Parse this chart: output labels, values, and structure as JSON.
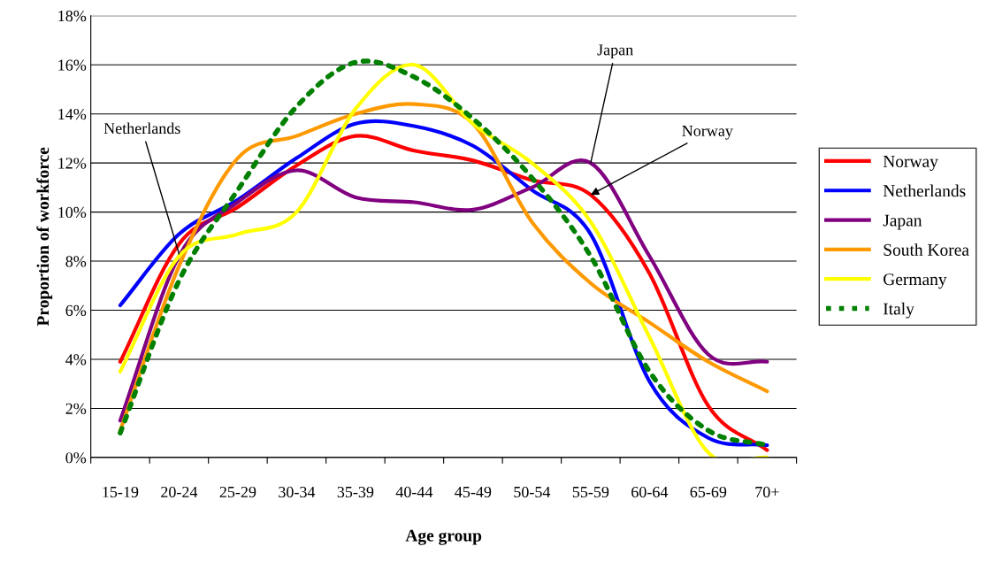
{
  "chart_data": {
    "type": "line",
    "xlabel": "Age group",
    "ylabel": "Proportion of workforce",
    "categories": [
      "15-19",
      "20-24",
      "25-29",
      "30-34",
      "35-39",
      "40-44",
      "45-49",
      "50-54",
      "55-59",
      "60-64",
      "65-69",
      "70+"
    ],
    "series": [
      {
        "name": "Norway",
        "color": "#ff0000",
        "line_style": "solid",
        "values": [
          3.9,
          8.7,
          10.2,
          11.9,
          13.1,
          12.5,
          12.1,
          11.3,
          10.7,
          7.5,
          2.1,
          0.3
        ]
      },
      {
        "name": "Netherlands",
        "color": "#0000ff",
        "line_style": "solid",
        "values": [
          6.2,
          9.1,
          10.5,
          12.2,
          13.6,
          13.5,
          12.7,
          10.9,
          9.1,
          3.1,
          0.8,
          0.5
        ]
      },
      {
        "name": "Japan",
        "color": "#800080",
        "line_style": "solid",
        "values": [
          1.5,
          8.2,
          10.4,
          11.7,
          10.6,
          10.4,
          10.1,
          11.0,
          12.0,
          8.2,
          4.2,
          3.9
        ]
      },
      {
        "name": "South Korea",
        "color": "#ff9900",
        "line_style": "solid",
        "values": [
          1.1,
          7.8,
          12.2,
          13.1,
          14.0,
          14.4,
          13.6,
          9.6,
          7.1,
          5.5,
          3.9,
          2.7
        ]
      },
      {
        "name": "Germany",
        "color": "#ffff00",
        "line_style": "solid",
        "values": [
          3.5,
          8.2,
          9.1,
          10.0,
          14.2,
          16.0,
          13.6,
          12.0,
          9.6,
          4.9,
          0.2,
          0.0
        ]
      },
      {
        "name": "Italy",
        "color": "#008000",
        "line_style": "dotted",
        "values": [
          1.0,
          7.2,
          10.9,
          14.3,
          16.1,
          15.5,
          13.8,
          11.4,
          8.2,
          3.5,
          1.1,
          0.5
        ]
      }
    ],
    "ylim": [
      0,
      18
    ],
    "yticks": [
      {
        "value": 0,
        "label": "0%"
      },
      {
        "value": 2,
        "label": "2%"
      },
      {
        "value": 4,
        "label": "4%"
      },
      {
        "value": 6,
        "label": "6%"
      },
      {
        "value": 8,
        "label": "8%"
      },
      {
        "value": 10,
        "label": "10%"
      },
      {
        "value": 12,
        "label": "12%"
      },
      {
        "value": 14,
        "label": "14%"
      },
      {
        "value": 16,
        "label": "16%"
      },
      {
        "value": 18,
        "label": "18%"
      }
    ],
    "grid": "y",
    "legend": "right",
    "marker": "none",
    "annotations": [
      {
        "text": "Netherlands",
        "x": "20-24",
        "y": 8.3
      },
      {
        "text": "Japan",
        "x": "55-59",
        "y": 12.0
      },
      {
        "text": "Norway",
        "x": "55-59",
        "y": 10.7
      }
    ]
  }
}
